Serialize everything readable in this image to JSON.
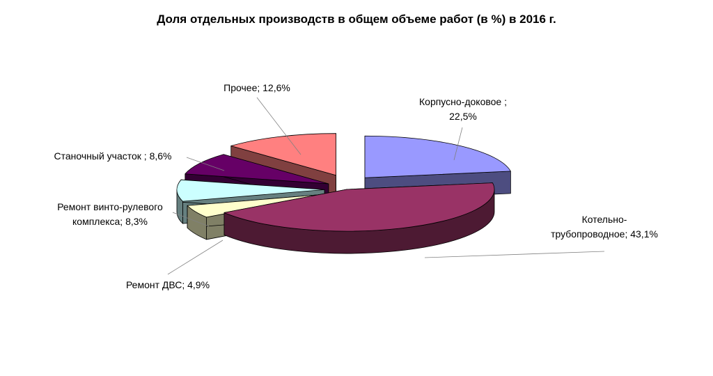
{
  "chart_data": {
    "type": "pie",
    "title": "Доля отдельных производств в общем объеме работ (в %) в 2016 г.",
    "slices": [
      {
        "name": "Корпусно-доковое",
        "value": 22.5,
        "label_lines": [
          "Корпусно-доковое  ;",
          "22,5%"
        ],
        "color": "#9999ff",
        "side_color": "#4d4d80"
      },
      {
        "name": "Котельно-трубопроводное",
        "value": 43.1,
        "label_lines": [
          "Котельно-",
          "трубопроводное; 43,1%"
        ],
        "color": "#993366",
        "side_color": "#4d1a33"
      },
      {
        "name": "Ремонт ДВС",
        "value": 4.9,
        "label_lines": [
          "Ремонт ДВС; 4,9%"
        ],
        "color": "#ffffcc",
        "side_color": "#808066"
      },
      {
        "name": "Ремонт винто-рулевого комплекса",
        "value": 8.3,
        "label_lines": [
          "Ремонт винто-рулевого",
          "комплекса; 8,3%"
        ],
        "color": "#ccffff",
        "side_color": "#668080"
      },
      {
        "name": "Станочный участок",
        "value": 8.6,
        "label_lines": [
          "Станочный участок ; 8,6%"
        ],
        "color": "#660066",
        "side_color": "#330033"
      },
      {
        "name": "Прочее",
        "value": 12.6,
        "label_lines": [
          "Прочее; 12,6%"
        ],
        "color": "#ff8080",
        "side_color": "#804040"
      }
    ]
  }
}
